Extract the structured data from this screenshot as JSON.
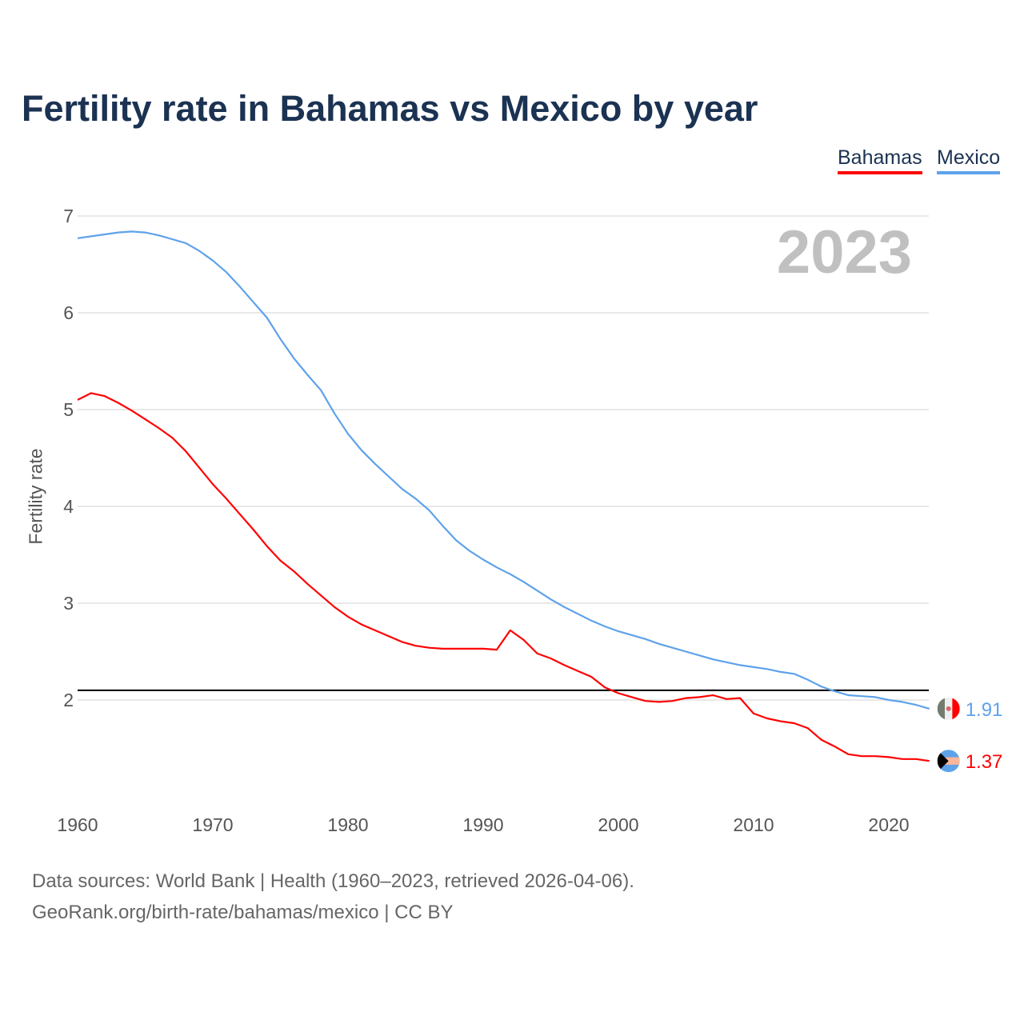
{
  "chart_data": {
    "type": "line",
    "title": "Fertility rate in Bahamas vs Mexico by year",
    "ylabel": "Fertility rate",
    "xlabel": "",
    "year_label": "2023",
    "xlim": [
      1960,
      2023
    ],
    "ylim": [
      1.0,
      7.2
    ],
    "x_ticks": [
      1960,
      1970,
      1980,
      1990,
      2000,
      2010,
      2020
    ],
    "y_ticks": [
      2,
      3,
      4,
      5,
      6,
      7
    ],
    "grid": true,
    "reference_line": 2.1,
    "legend_position": "top-right",
    "x": [
      1960,
      1961,
      1962,
      1963,
      1964,
      1965,
      1966,
      1967,
      1968,
      1969,
      1970,
      1971,
      1972,
      1973,
      1974,
      1975,
      1976,
      1977,
      1978,
      1979,
      1980,
      1981,
      1982,
      1983,
      1984,
      1985,
      1986,
      1987,
      1988,
      1989,
      1990,
      1991,
      1992,
      1993,
      1994,
      1995,
      1996,
      1997,
      1998,
      1999,
      2000,
      2001,
      2002,
      2003,
      2004,
      2005,
      2006,
      2007,
      2008,
      2009,
      2010,
      2011,
      2012,
      2013,
      2014,
      2015,
      2016,
      2017,
      2018,
      2019,
      2020,
      2021,
      2022,
      2023
    ],
    "series": [
      {
        "name": "Bahamas",
        "color": "#ff0000",
        "end_label": "1.37",
        "flag": "bahamas-flag",
        "values": [
          5.1,
          5.17,
          5.14,
          5.07,
          4.99,
          4.9,
          4.81,
          4.71,
          4.57,
          4.4,
          4.23,
          4.08,
          3.92,
          3.76,
          3.59,
          3.44,
          3.33,
          3.2,
          3.08,
          2.96,
          2.86,
          2.78,
          2.72,
          2.66,
          2.6,
          2.56,
          2.54,
          2.53,
          2.53,
          2.53,
          2.53,
          2.52,
          2.72,
          2.62,
          2.48,
          2.43,
          2.36,
          2.3,
          2.24,
          2.13,
          2.07,
          2.03,
          1.99,
          1.98,
          1.99,
          2.02,
          2.03,
          2.05,
          2.01,
          2.02,
          1.86,
          1.81,
          1.78,
          1.76,
          1.71,
          1.59,
          1.52,
          1.44,
          1.42,
          1.42,
          1.41,
          1.39,
          1.39,
          1.37
        ]
      },
      {
        "name": "Mexico",
        "color": "#5ea2ea",
        "end_label": "1.91",
        "flag": "mexico-flag",
        "values": [
          6.77,
          6.79,
          6.81,
          6.83,
          6.84,
          6.83,
          6.8,
          6.76,
          6.72,
          6.64,
          6.54,
          6.42,
          6.27,
          6.11,
          5.95,
          5.73,
          5.53,
          5.36,
          5.2,
          4.96,
          4.75,
          4.58,
          4.44,
          4.31,
          4.18,
          4.08,
          3.96,
          3.8,
          3.65,
          3.54,
          3.45,
          3.37,
          3.3,
          3.22,
          3.13,
          3.04,
          2.96,
          2.89,
          2.82,
          2.76,
          2.71,
          2.67,
          2.63,
          2.58,
          2.54,
          2.5,
          2.46,
          2.42,
          2.39,
          2.36,
          2.34,
          2.32,
          2.29,
          2.27,
          2.21,
          2.14,
          2.09,
          2.05,
          2.04,
          2.03,
          2.0,
          1.98,
          1.95,
          1.91
        ]
      }
    ]
  },
  "footer": {
    "line1": "Data sources: World Bank | Health (1960–2023, retrieved 2026-04-06).",
    "line2": "GeoRank.org/birth-rate/bahamas/mexico | CC BY"
  }
}
